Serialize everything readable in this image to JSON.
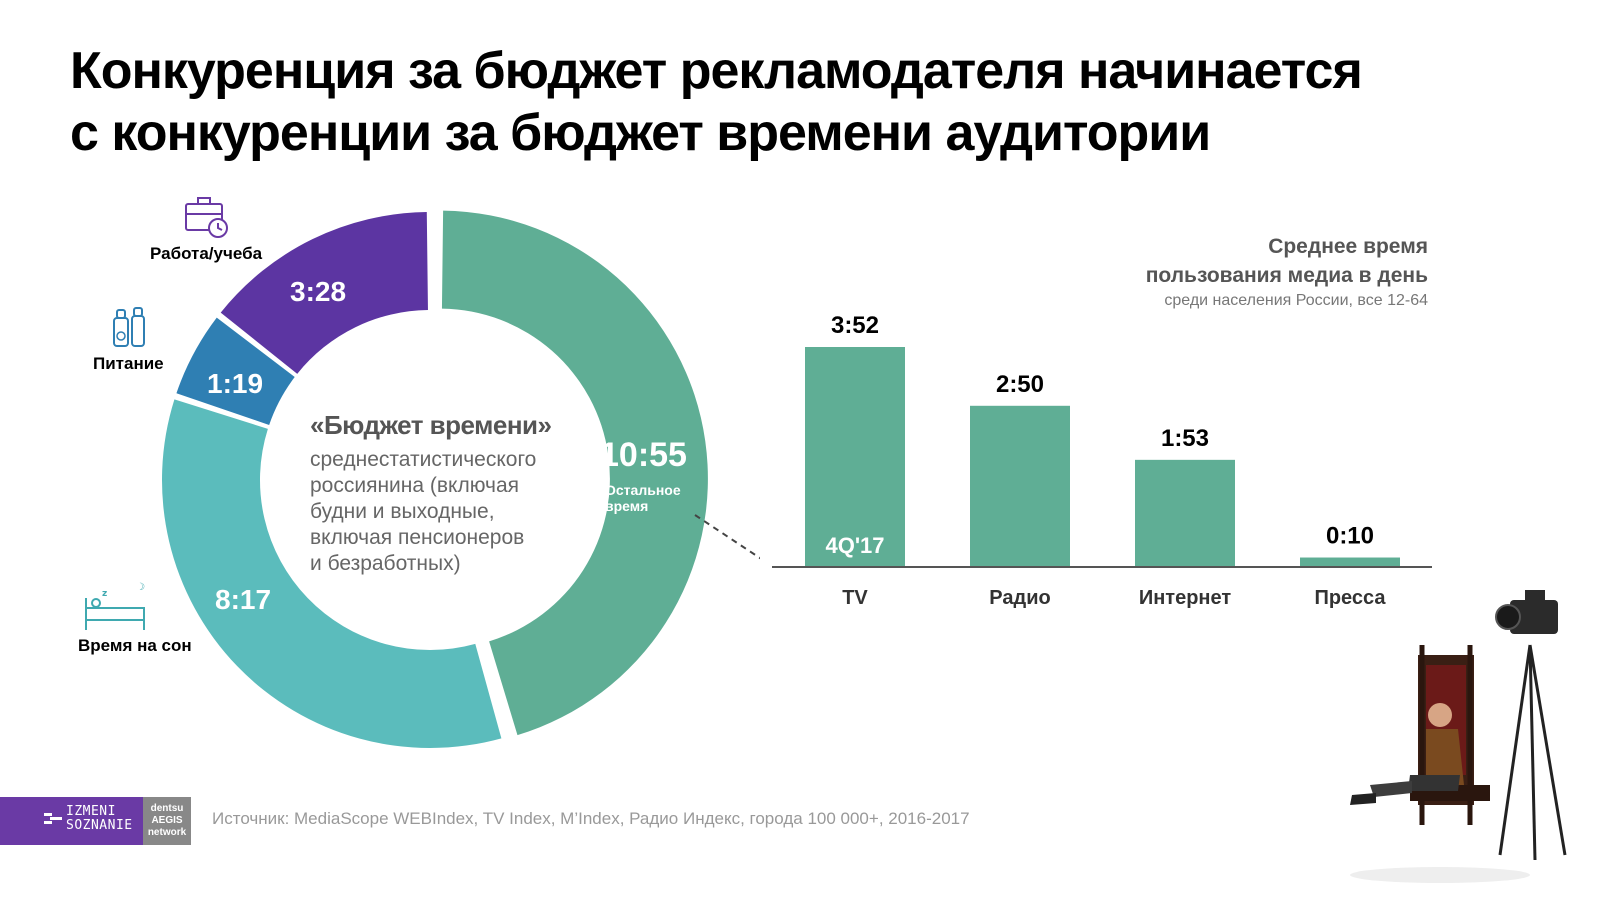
{
  "title": {
    "line1": "Конкуренция за бюджет рекламодателя начинается",
    "line2": "с конкуренции за бюджет времени аудитории"
  },
  "chart_data": [
    {
      "type": "pie",
      "center": {
        "heading": "«Бюджет времени»",
        "lines": [
          "среднестатистического",
          "россиянина (включая",
          "будни и выходные,",
          "включая пенсионеров",
          "и безработных)"
        ]
      },
      "slices": [
        {
          "label": "10:55",
          "minutes": 655,
          "sub": [
            "Остальное",
            "время"
          ],
          "color": "#5fae95"
        },
        {
          "label": "8:17",
          "minutes": 497,
          "category": "Время на сон",
          "color": "#5bbcbc"
        },
        {
          "label": "1:19",
          "minutes": 79,
          "category": "Питание",
          "color": "#2f7fb3"
        },
        {
          "label": "3:28",
          "minutes": 208,
          "category": "Работа/учеба",
          "color": "#5c35a2"
        }
      ]
    },
    {
      "type": "bar",
      "title": [
        "Среднее время",
        "пользования медиа в день"
      ],
      "subtitle": "среди населения России, все 12-64",
      "categories": [
        "TV",
        "Радио",
        "Интернет",
        "Пресса"
      ],
      "values": [
        232,
        170,
        113,
        10
      ],
      "value_labels": [
        "3:52",
        "2:50",
        "1:53",
        "0:10"
      ],
      "period_label": "4Q'17",
      "color": "#5fae95",
      "ylim": [
        0,
        232
      ]
    }
  ],
  "logos": {
    "brand1": [
      "IZMENI",
      "SOZNANIE"
    ],
    "brand2": [
      "dentsu",
      "AEGIS",
      "network"
    ]
  },
  "source": "Источник: MediaScope WEBIndex, TV Index, M’Index, Радио Индекс, города 100 000+, 2016-2017"
}
